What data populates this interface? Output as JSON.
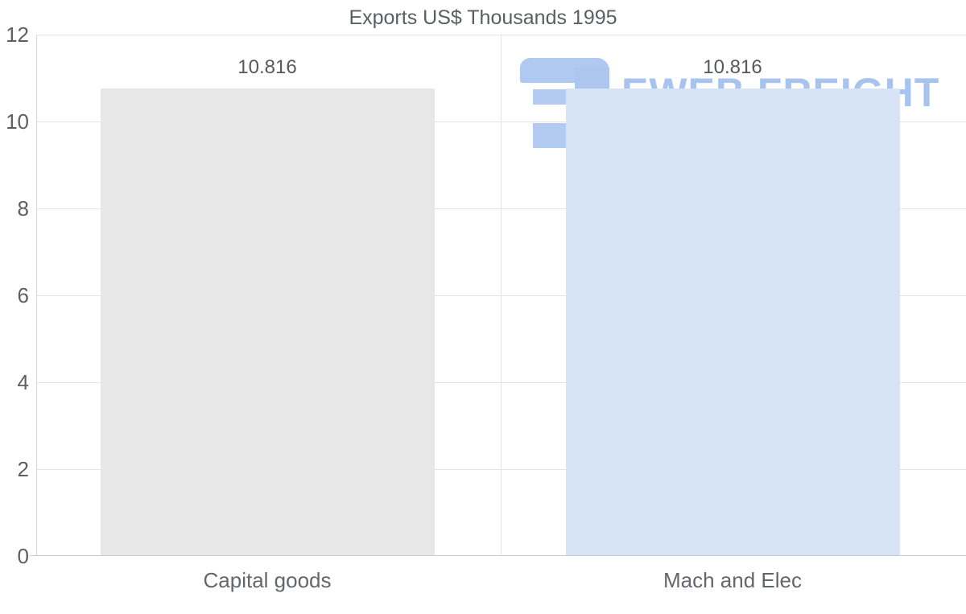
{
  "title": "Exports US$ Thousands 1995",
  "watermark": {
    "text": "EWEB FREIGHT",
    "logo": "three-bars-flag-logo",
    "color": "#a8c3ed"
  },
  "chart_data": {
    "type": "bar",
    "title": "Exports US$ Thousands 1995",
    "categories": [
      "Capital goods",
      "Mach and Elec"
    ],
    "values": [
      10.816,
      10.816
    ],
    "value_labels": [
      "10.816",
      "10.816"
    ],
    "yticks": [
      "0",
      "2",
      "4",
      "6",
      "8",
      "10",
      "12"
    ],
    "ylim": [
      0,
      12
    ],
    "xlabel": "",
    "ylabel": "",
    "grid": "horizontal gridlines at every 2 units, vertical separator between category bands",
    "legend": "none",
    "bar_colors": [
      "#e7e7e7",
      "#d7e4f8"
    ],
    "background": "#ffffff",
    "text_color": "#5c5f63"
  }
}
